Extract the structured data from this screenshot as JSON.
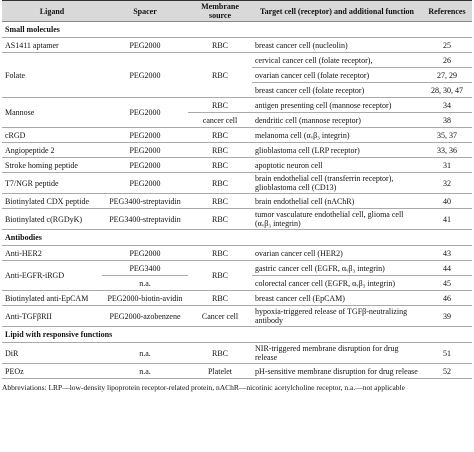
{
  "header": [
    "Ligand",
    "Spacer",
    "Membrane source",
    "Target cell (receptor) and additional function",
    "References"
  ],
  "sections": [
    {
      "title": "Small molecules",
      "groups": [
        {
          "ligand": "AS1411 aptamer",
          "spacer": "PEG2000",
          "source": "RBC",
          "entries": [
            {
              "target": "breast cancer cell (nucleolin)",
              "refs": "25"
            }
          ]
        },
        {
          "ligand": "Folate",
          "spacer": "PEG2000",
          "source": "RBC",
          "entries": [
            {
              "target": "cervical cancer cell (folate receptor),",
              "refs": "26"
            },
            {
              "target": "ovarian cancer cell (folate receptor)",
              "refs": "27, 29"
            },
            {
              "target": "breast cancer cell (folate receptor)",
              "refs": "28, 30, 47"
            }
          ]
        },
        {
          "ligand": "Mannose",
          "spacer": "PEG2000",
          "entries": [
            {
              "source": "RBC",
              "target": "antigen presenting cell (mannose receptor)",
              "refs": "34"
            },
            {
              "source": "cancer cell",
              "target": "dendritic cell (mannose receptor)",
              "refs": "38"
            }
          ]
        },
        {
          "ligand": "cRGD",
          "spacer": "PEG2000",
          "source": "RBC",
          "entries": [
            {
              "target": "melanoma cell (αᵥβ₃ integrin)",
              "refs": "35, 37"
            }
          ]
        },
        {
          "ligand": "Angiopeptide 2",
          "spacer": "PEG2000",
          "source": "RBC",
          "entries": [
            {
              "target": "glioblastoma cell (LRP receptor)",
              "refs": "33, 36"
            }
          ]
        },
        {
          "ligand": "Stroke homing peptide",
          "spacer": "PEG2000",
          "source": "RBC",
          "entries": [
            {
              "target": "apoptotic neuron cell",
              "refs": "31"
            }
          ]
        },
        {
          "ligand": "T7/NGR peptide",
          "spacer": "PEG2000",
          "source": "RBC",
          "entries": [
            {
              "target": "brain endothelial cell (transferrin receptor), glioblastoma cell (CD13)",
              "refs": "32"
            }
          ]
        },
        {
          "ligand": "Biotinylated CDX peptide",
          "spacer": "PEG3400-streptavidin",
          "source": "RBC",
          "entries": [
            {
              "target": "brain endothelial cell (nAChR)",
              "refs": "40"
            }
          ]
        },
        {
          "ligand": "Biotinylated c(RGDyK)",
          "spacer": "PEG3400-streptavidin",
          "source": "RBC",
          "entries": [
            {
              "target": "tumor vasculature endothelial cell, glioma cell (αᵥβ₃ integrin)",
              "refs": "41"
            }
          ]
        }
      ]
    },
    {
      "title": "Antibodies",
      "groups": [
        {
          "ligand": "Anti-HER2",
          "spacer": "PEG2000",
          "source": "RBC",
          "entries": [
            {
              "target": "ovarian cancer cell (HER2)",
              "refs": "43"
            }
          ]
        },
        {
          "ligand": "Anti-EGFR-iRGD",
          "source": "RBC",
          "entries": [
            {
              "spacer": "PEG3400",
              "target": "gastric cancer cell (EGFR, αᵥβ₃ integrin)",
              "refs": "44"
            },
            {
              "spacer": "n.a.",
              "target": "colorectal cancer cell (EGFR, αᵥβ₃ integrin)",
              "refs": "45"
            }
          ]
        },
        {
          "ligand": "Biotinylated anti-EpCAM",
          "spacer": "PEG2000-biotin-avidin",
          "source": "RBC",
          "entries": [
            {
              "target": "breast cancer cell (EpCAM)",
              "refs": "46"
            }
          ]
        },
        {
          "ligand": "Anti-TGFβRII",
          "spacer": "PEG2000-azobenzene",
          "source": "Cancer cell",
          "entries": [
            {
              "target": "hypoxia-triggered release of TGFβ-neutralizing antibody",
              "refs": "39"
            }
          ]
        }
      ]
    },
    {
      "title": "Lipid with responsive functions",
      "groups": [
        {
          "ligand": "DiR",
          "spacer": "n.a.",
          "source": "RBC",
          "entries": [
            {
              "target": "NIR-triggered membrane disruption for drug release",
              "refs": "51"
            }
          ]
        },
        {
          "ligand": "PEOz",
          "spacer": "n.a.",
          "source": "Platelet",
          "entries": [
            {
              "target": "pH-sensitive membrane disruption for drug release",
              "refs": "52"
            }
          ]
        }
      ]
    }
  ],
  "footnote": "Abbreviations: LRP—low-density lipoprotein receptor-related protein, nAChR—nicotinic acetylcholine receptor, n.a.—not applicable"
}
